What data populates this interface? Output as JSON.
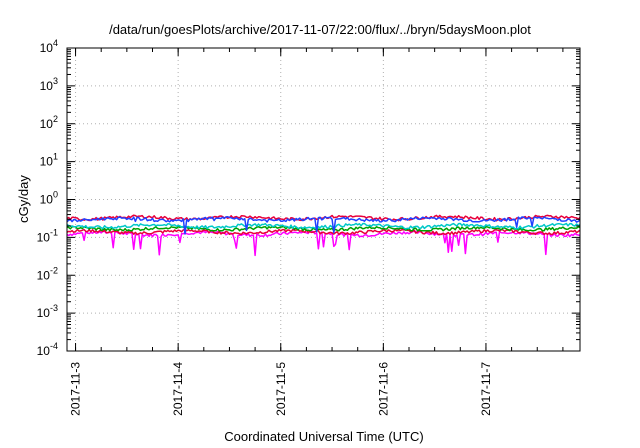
{
  "chart_data": {
    "type": "line",
    "title": "/data/run/goesPlots/archive/2017-11-07/22:00/flux/../bryn/5daysMoon.plot",
    "xlabel": "Coordinated Universal Time (UTC)",
    "ylabel": "cGy/day",
    "yscale": "log",
    "ylim": [
      0.0001,
      10000
    ],
    "yticks": [
      {
        "base": "10",
        "exp": "-4",
        "value": 0.0001
      },
      {
        "base": "10",
        "exp": "-3",
        "value": 0.001
      },
      {
        "base": "10",
        "exp": "-2",
        "value": 0.01
      },
      {
        "base": "10",
        "exp": "-1",
        "value": 0.1
      },
      {
        "base": "10",
        "exp": "0",
        "value": 1
      },
      {
        "base": "10",
        "exp": "1",
        "value": 10
      },
      {
        "base": "10",
        "exp": "2",
        "value": 100
      },
      {
        "base": "10",
        "exp": "3",
        "value": 1000
      },
      {
        "base": "10",
        "exp": "4",
        "value": 10000
      }
    ],
    "xlim": [
      "2017-11-02T22:00",
      "2017-11-07T22:00"
    ],
    "xticks": [
      {
        "label": "2017-11-3",
        "date": "2017-11-03T00:00"
      },
      {
        "label": "2017-11-4",
        "date": "2017-11-04T00:00"
      },
      {
        "label": "2017-11-5",
        "date": "2017-11-05T00:00"
      },
      {
        "label": "2017-11-6",
        "date": "2017-11-06T00:00"
      },
      {
        "label": "2017-11-7",
        "date": "2017-11-07T00:00"
      }
    ],
    "grid": true,
    "series": [
      {
        "color": "#ff00ff",
        "base": 0.125,
        "approx_range": [
          0.03,
          0.16
        ],
        "note": "frequent deep dips"
      },
      {
        "color": "#e8003a",
        "base": 0.14,
        "approx_range": [
          0.12,
          0.16
        ]
      },
      {
        "color": "#00a000",
        "base": 0.17,
        "approx_range": [
          0.15,
          0.19
        ]
      },
      {
        "color": "#00c8c8",
        "base": 0.2,
        "approx_range": [
          0.16,
          0.24
        ]
      },
      {
        "color": "#e8003a",
        "base": 0.33,
        "approx_range": [
          0.2,
          0.45
        ]
      },
      {
        "color": "#2040ff",
        "base": 0.3,
        "approx_range": [
          0.12,
          0.42
        ]
      }
    ]
  }
}
